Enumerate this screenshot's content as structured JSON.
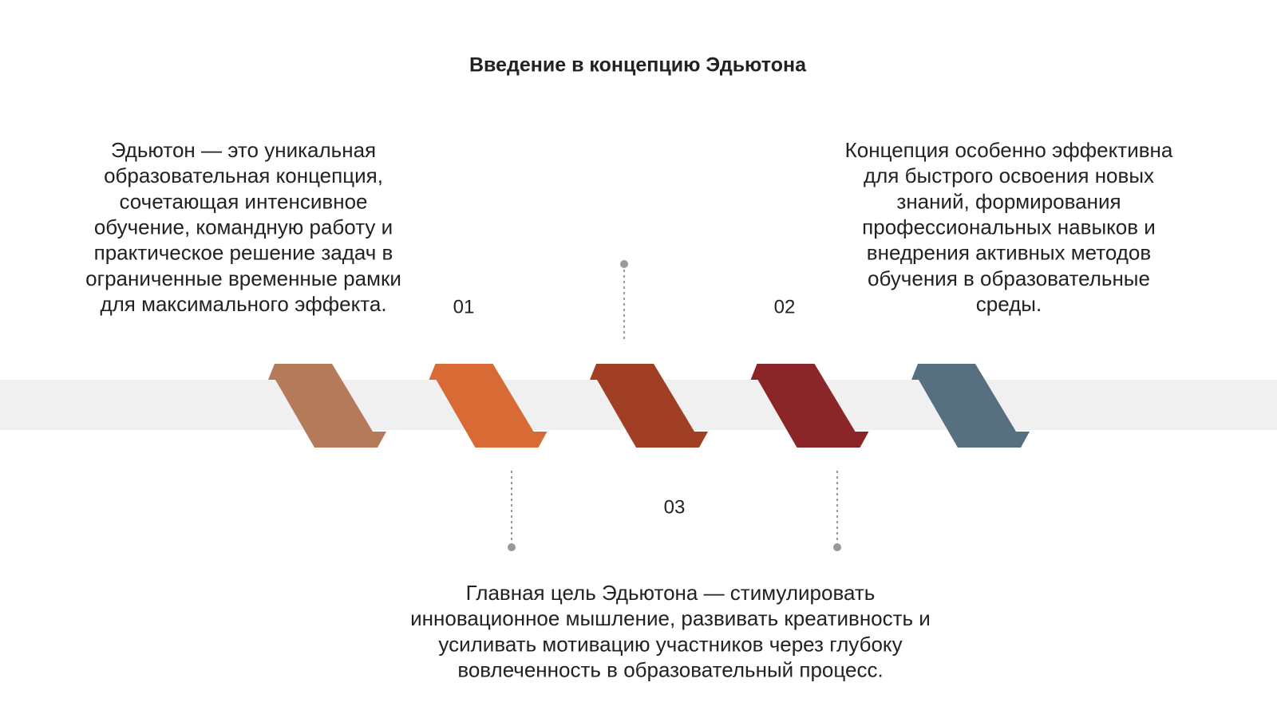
{
  "title": "Введение в концепцию Эдьютона",
  "steps": [
    {
      "number": "01",
      "lines": [
        "Эдьютон — это уникальная",
        "образовательная концепция,",
        "сочетающая интенсивное",
        "обучение, командную работу и",
        "практическое решение задач в",
        "ограниченные временные рамки",
        "для максимального эффекта."
      ]
    },
    {
      "number": "02",
      "lines": [
        "Концепция особенно эффективна",
        "для быстрого освоения новых",
        "знаний, формирования",
        "профессиональных навыков и",
        "внедрения активных методов",
        "обучения в образовательные",
        "среды."
      ]
    },
    {
      "number": "03",
      "lines": [
        "Главная цель Эдьютона — стимулировать",
        "инновационное мышление, развивать креативность и",
        "усиливать мотивацию участников через глубоку",
        "вовлеченность в образовательный процесс."
      ]
    }
  ]
}
